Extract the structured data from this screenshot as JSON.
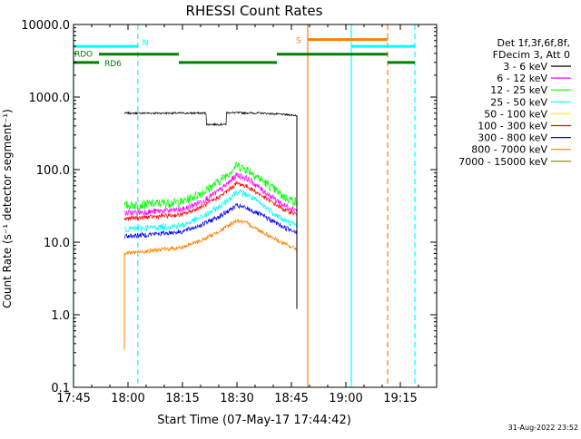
{
  "chart_data": {
    "type": "line",
    "title": "RHESSI Count Rates",
    "xlabel": "Start Time (07-May-17 17:44:42)",
    "ylabel": "Count Rate (s⁻¹ detector segment⁻¹)",
    "yscale": "log",
    "ylim": [
      0.1,
      10000
    ],
    "xlim_minutes": [
      0,
      100
    ],
    "x_ticks": [
      {
        "m": 0,
        "label": "17:45"
      },
      {
        "m": 15,
        "label": "18:00"
      },
      {
        "m": 30,
        "label": "18:15"
      },
      {
        "m": 45,
        "label": "18:30"
      },
      {
        "m": 60,
        "label": "18:45"
      },
      {
        "m": 75,
        "label": "19:00"
      },
      {
        "m": 90,
        "label": "19:15"
      }
    ],
    "y_ticks": [
      {
        "v": 0.1,
        "label": "0.1"
      },
      {
        "v": 1,
        "label": "1.0"
      },
      {
        "v": 10,
        "label": "10.0"
      },
      {
        "v": 100,
        "label": "100.0"
      },
      {
        "v": 1000,
        "label": "1000.0"
      },
      {
        "v": 10000,
        "label": "10000.0"
      }
    ],
    "legend": {
      "position": "right",
      "header": [
        "Det 1f,3f,6f,8f,",
        "FDecim 3, Att 0"
      ],
      "entries": [
        {
          "name": "3 - 6 keV",
          "color": "#000000"
        },
        {
          "name": "6 - 12 keV",
          "color": "#ff00ff"
        },
        {
          "name": "12 - 25 keV",
          "color": "#00ff00"
        },
        {
          "name": "25 - 50 keV",
          "color": "#00ffff"
        },
        {
          "name": "50 - 100 keV",
          "color": "#ffff00"
        },
        {
          "name": "100 - 300 keV",
          "color": "#ff0000"
        },
        {
          "name": "300 - 800 keV",
          "color": "#0000ff"
        },
        {
          "name": "800 - 7000 keV",
          "color": "#ff8000"
        },
        {
          "name": "7000 - 15000 keV",
          "color": "#808000"
        }
      ]
    },
    "series": [
      {
        "name": "3 - 6 keV",
        "color": "#000000",
        "noise": 0.03,
        "points": [
          [
            14.0,
            600
          ],
          [
            36.5,
            600
          ],
          [
            36.6,
            420
          ],
          [
            42.0,
            420
          ],
          [
            42.1,
            610
          ],
          [
            52.0,
            600
          ],
          [
            61.5,
            560
          ]
        ]
      },
      {
        "name": "12 - 25 keV",
        "color": "#00ff00",
        "noise": 0.15,
        "points": [
          [
            14.0,
            32
          ],
          [
            30.0,
            36
          ],
          [
            36.0,
            50
          ],
          [
            41.0,
            75
          ],
          [
            45.0,
            115
          ],
          [
            48.0,
            100
          ],
          [
            53.0,
            65
          ],
          [
            58.0,
            42
          ],
          [
            61.5,
            36
          ]
        ]
      },
      {
        "name": "6 - 12 keV",
        "color": "#ff00ff",
        "noise": 0.1,
        "points": [
          [
            14.0,
            25
          ],
          [
            30.0,
            28
          ],
          [
            36.0,
            38
          ],
          [
            41.0,
            55
          ],
          [
            45.0,
            85
          ],
          [
            48.0,
            75
          ],
          [
            53.0,
            48
          ],
          [
            58.0,
            32
          ],
          [
            61.5,
            28
          ]
        ]
      },
      {
        "name": "100 - 300 keV",
        "color": "#ff0000",
        "noise": 0.07,
        "points": [
          [
            14.0,
            21
          ],
          [
            30.0,
            24
          ],
          [
            36.0,
            32
          ],
          [
            41.0,
            45
          ],
          [
            45.0,
            65
          ],
          [
            48.0,
            58
          ],
          [
            53.0,
            40
          ],
          [
            58.0,
            28
          ],
          [
            61.5,
            24
          ]
        ]
      },
      {
        "name": "25 - 50 keV",
        "color": "#00ffff",
        "noise": 0.1,
        "points": [
          [
            14.0,
            15
          ],
          [
            30.0,
            17
          ],
          [
            36.0,
            23
          ],
          [
            41.0,
            33
          ],
          [
            45.0,
            50
          ],
          [
            48.0,
            45
          ],
          [
            53.0,
            30
          ],
          [
            58.0,
            20
          ],
          [
            61.5,
            17
          ]
        ]
      },
      {
        "name": "300 - 800 keV",
        "color": "#0000ff",
        "noise": 0.08,
        "points": [
          [
            14.0,
            12
          ],
          [
            30.0,
            14
          ],
          [
            36.0,
            18
          ],
          [
            41.0,
            24
          ],
          [
            45.0,
            32
          ],
          [
            48.0,
            29
          ],
          [
            53.0,
            22
          ],
          [
            58.0,
            16
          ],
          [
            61.5,
            14
          ]
        ]
      },
      {
        "name": "800 - 7000 keV",
        "color": "#ff8000",
        "noise": 0.07,
        "points": [
          [
            14.0,
            7
          ],
          [
            30.0,
            8.5
          ],
          [
            36.0,
            11
          ],
          [
            41.0,
            15
          ],
          [
            45.0,
            20
          ],
          [
            48.0,
            18
          ],
          [
            53.0,
            13
          ],
          [
            58.0,
            9.5
          ],
          [
            61.5,
            8
          ]
        ]
      }
    ],
    "spikes": [
      {
        "color": "#ff8000",
        "m": 14.0,
        "from": 7,
        "to": 0.33
      },
      {
        "color": "#000000",
        "m": 61.5,
        "from": 560,
        "to": 1.2
      }
    ],
    "vlines": [
      {
        "m": 0,
        "color": "#00ffff",
        "dash": false
      },
      {
        "m": 17.7,
        "color": "#00ffff",
        "dash": true
      },
      {
        "m": 64.5,
        "color": "#ff8000",
        "dash": false
      },
      {
        "m": 76.5,
        "color": "#00ffff",
        "dash": false
      },
      {
        "m": 86.5,
        "color": "#ff8000",
        "dash": true
      },
      {
        "m": 94.0,
        "color": "#00ffff",
        "dash": true
      }
    ],
    "state_bars": [
      {
        "id": "N",
        "label": "N",
        "color": "#00ffff",
        "level": 5000,
        "segments": [
          [
            0,
            17.7
          ],
          [
            76.5,
            94.0
          ]
        ]
      },
      {
        "id": "S",
        "label": "S",
        "color": "#ff8000",
        "level": 6200,
        "segments": [
          [
            64.5,
            86.5
          ]
        ]
      },
      {
        "id": "RDO",
        "label": "RDO",
        "color": "#008000",
        "level": 3900,
        "segments": [
          [
            7.0,
            29.0
          ],
          [
            56.0,
            86.5
          ]
        ]
      },
      {
        "id": "RD6",
        "label": "RD6",
        "color": "#008000",
        "level": 3000,
        "segments": [
          [
            0,
            7.0
          ],
          [
            29.0,
            56.0
          ],
          [
            86.5,
            94.0
          ]
        ]
      }
    ],
    "timestamp": "31-Aug-2022 23:52"
  }
}
